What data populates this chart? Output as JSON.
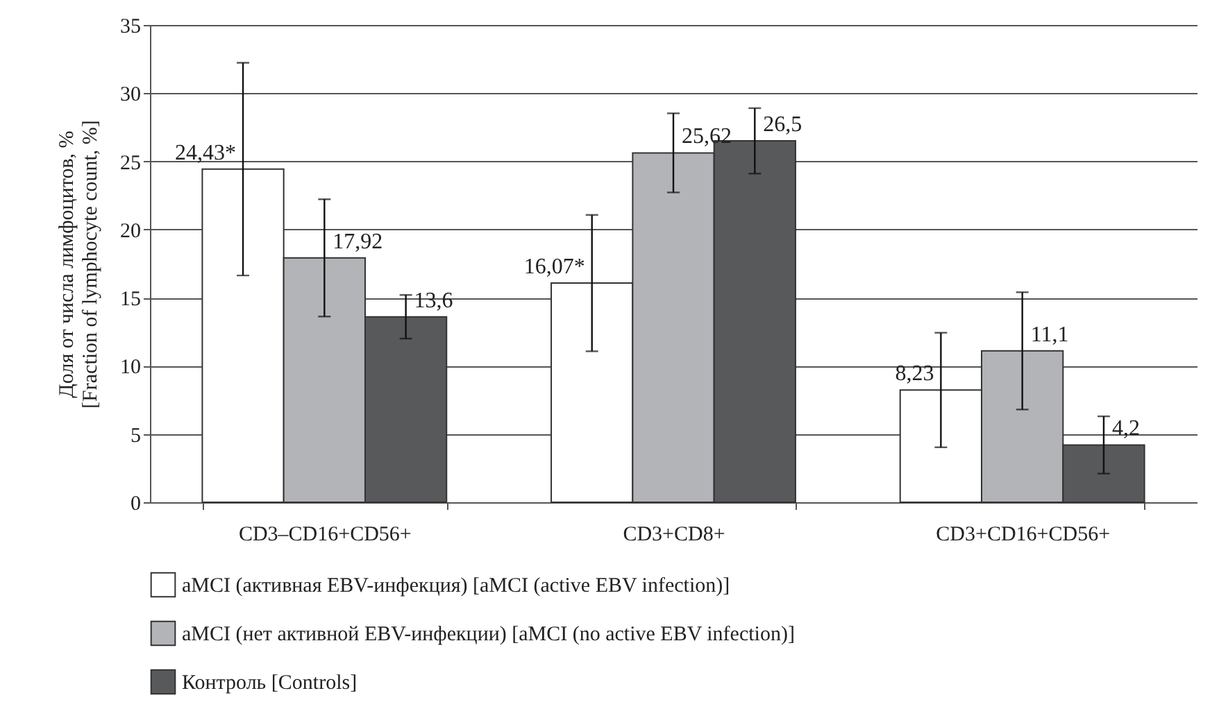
{
  "chart_data": {
    "type": "bar",
    "ylabel": "Доля от числа лимфоцитов, %\n[Fraction of lymphocyte count, %]",
    "categories": [
      "CD3–CD16+CD56+",
      "CD3+CD8+",
      "CD3+CD16+CD56+"
    ],
    "series": [
      {
        "name": "aMCI (активная EBV-инфекция) [aMCI (active EBV infection)]",
        "color": "#ffffff",
        "values": [
          24.43,
          16.07,
          8.23
        ],
        "errors": [
          7.8,
          5.0,
          4.2
        ],
        "value_labels": [
          "24,43*",
          "16,07*",
          "8,23"
        ]
      },
      {
        "name": "aMCI (нет активной EBV-инфекции) [aMCI (no active EBV infection)]",
        "color": "#b3b4b8",
        "values": [
          17.92,
          25.62,
          11.1
        ],
        "errors": [
          4.3,
          2.9,
          4.3
        ],
        "value_labels": [
          "17,92",
          "25,62",
          "11,1"
        ]
      },
      {
        "name": "Контроль [Controls]",
        "color": "#58595b",
        "values": [
          13.6,
          26.5,
          4.2
        ],
        "errors": [
          1.6,
          2.4,
          2.1
        ],
        "value_labels": [
          "13,6",
          "26,5",
          "4,2"
        ]
      }
    ],
    "ylim": [
      0,
      35
    ],
    "yticks": [
      0,
      5,
      10,
      15,
      20,
      25,
      30,
      35
    ],
    "grid": "y",
    "legend": "bottom"
  }
}
